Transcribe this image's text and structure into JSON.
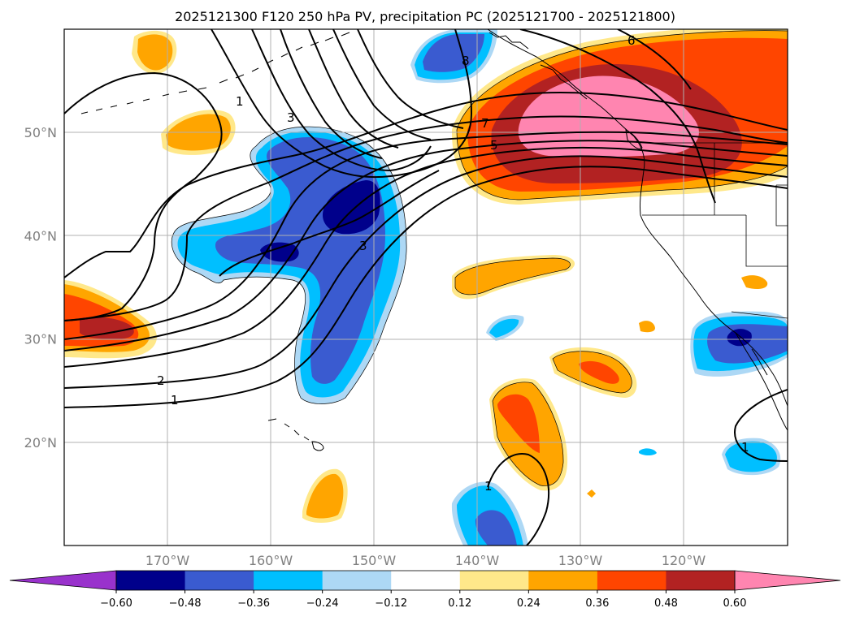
{
  "title": "2025121300 F120 250 hPa PV, precipitation PC (2025121700 - 2025121800)",
  "axes": {
    "lon_ticks": [
      {
        "lon": -170,
        "label": "170°W"
      },
      {
        "lon": -160,
        "label": "160°W"
      },
      {
        "lon": -150,
        "label": "150°W"
      },
      {
        "lon": -140,
        "label": "140°W"
      },
      {
        "lon": -130,
        "label": "130°W"
      },
      {
        "lon": -120,
        "label": "120°W"
      }
    ],
    "lat_ticks": [
      {
        "lat": 20,
        "label": "20°N"
      },
      {
        "lat": 30,
        "label": "30°N"
      },
      {
        "lat": 40,
        "label": "40°N"
      },
      {
        "lat": 50,
        "label": "50°N"
      }
    ]
  },
  "colorbar": {
    "colors": [
      "#9932cc",
      "#00008b",
      "#3a5bd0",
      "#00bfff",
      "#add8f5",
      "#ffffff",
      "#ffe88a",
      "#ffa500",
      "#ff4500",
      "#b22222",
      "#ff85b0"
    ],
    "labels": [
      "−0.60",
      "−0.48",
      "−0.36",
      "−0.24",
      "−0.12",
      "0.12",
      "0.24",
      "0.36",
      "0.48",
      "0.60"
    ]
  },
  "contour_labels": [
    "1",
    "2",
    "3",
    "3",
    "1",
    "6",
    "7",
    "5",
    "8",
    "1",
    "1"
  ],
  "colors": {
    "contour": "#000000",
    "grid": "#b0b0b0",
    "tick_label": "#808080"
  }
}
